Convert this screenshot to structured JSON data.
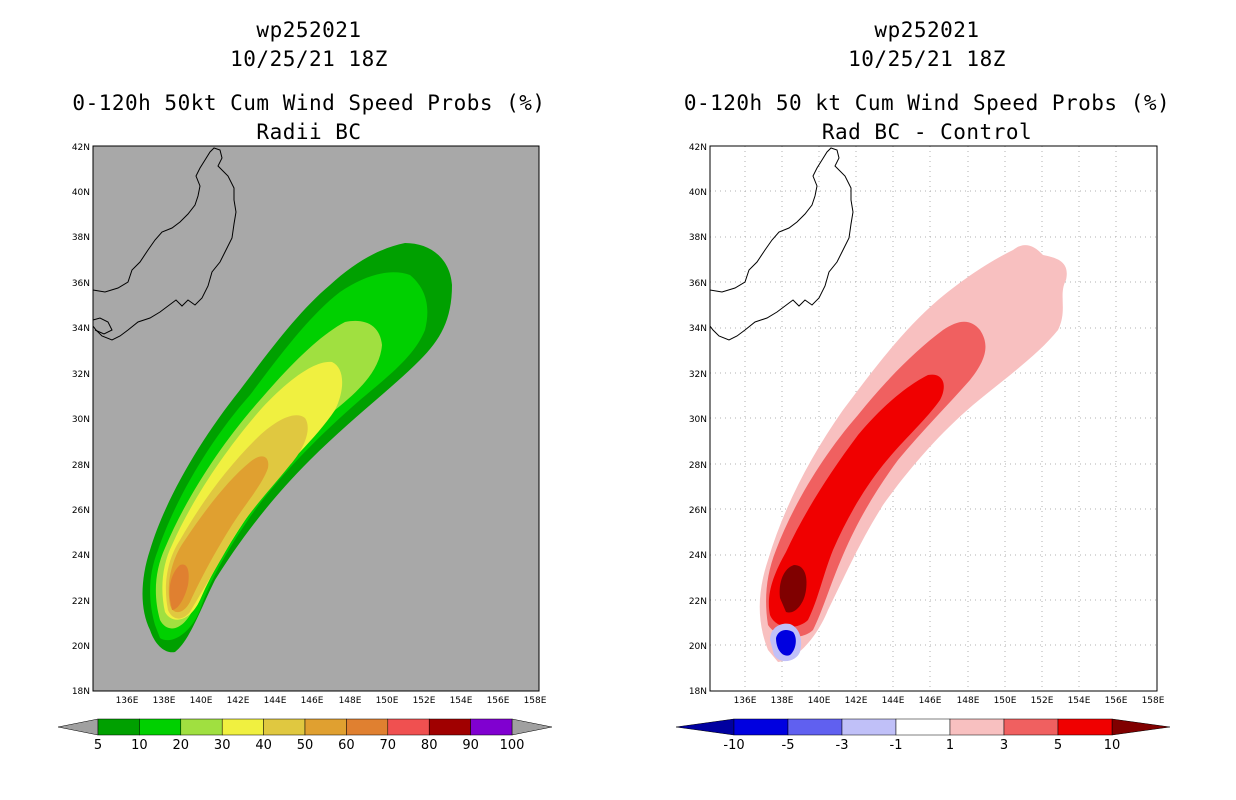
{
  "panels": [
    {
      "storm_id": "wp252021",
      "datetime": "10/25/21 18Z",
      "title": "0-120h 50kt Cum Wind Speed Probs (%)",
      "subtitle": "Radii BC",
      "background": "#a8a8a8",
      "lat_labels": [
        "42N",
        "40N",
        "38N",
        "36N",
        "34N",
        "32N",
        "30N",
        "28N",
        "26N",
        "24N",
        "22N",
        "20N",
        "18N"
      ],
      "lon_labels": [
        "136E",
        "138E",
        "140E",
        "142E",
        "144E",
        "146E",
        "148E",
        "150E",
        "152E",
        "154E",
        "156E",
        "158E"
      ],
      "colorbar": {
        "colors": [
          "#00a000",
          "#00d000",
          "#a0e040",
          "#f0f040",
          "#e0c840",
          "#e0a030",
          "#e08030",
          "#f05050",
          "#a00000",
          "#8000d0"
        ],
        "labels": [
          "5",
          "10",
          "20",
          "30",
          "40",
          "50",
          "60",
          "70",
          "80",
          "90",
          "100"
        ]
      }
    },
    {
      "storm_id": "wp252021",
      "datetime": "10/25/21 18Z",
      "title": "0-120h 50 kt Cum Wind Speed Probs (%)",
      "subtitle": "Rad BC - Control",
      "background": "#ffffff",
      "lat_labels": [
        "42N",
        "40N",
        "38N",
        "36N",
        "34N",
        "32N",
        "30N",
        "28N",
        "26N",
        "24N",
        "22N",
        "20N",
        "18N"
      ],
      "lon_labels": [
        "136E",
        "138E",
        "140E",
        "142E",
        "144E",
        "146E",
        "148E",
        "150E",
        "152E",
        "154E",
        "156E",
        "158E"
      ],
      "colorbar": {
        "left_arrow": "#0000a0",
        "right_arrow": "#800000",
        "colors": [
          "#0000e0",
          "#6060f0",
          "#c0c0f8",
          "#ffffff",
          "#f8c0c0",
          "#f06060",
          "#f00000"
        ],
        "labels": [
          "-10",
          "-5",
          "-3",
          "-1",
          "1",
          "3",
          "5",
          "10"
        ]
      }
    }
  ]
}
